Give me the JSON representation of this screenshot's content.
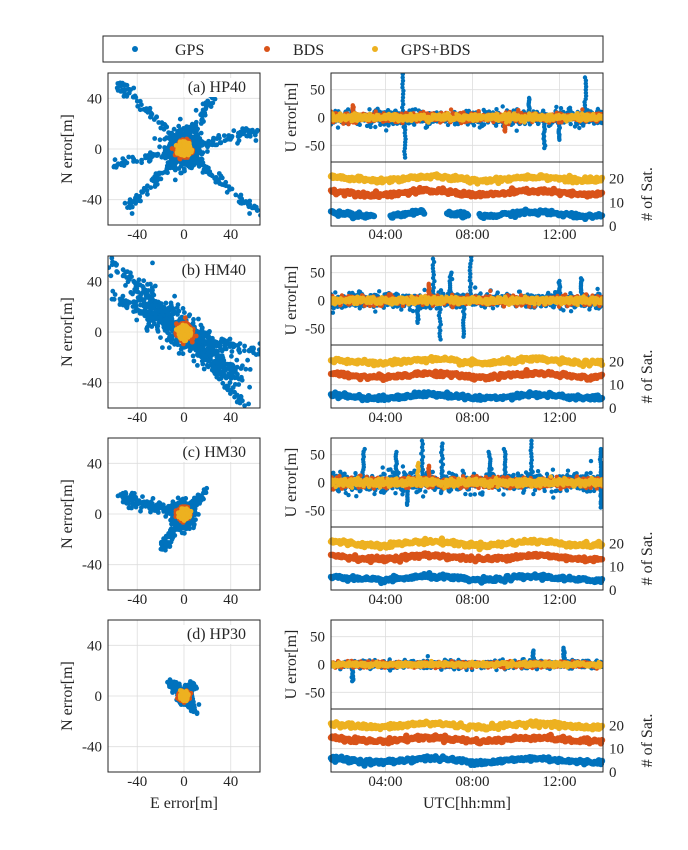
{
  "colors": {
    "GPS": "#0072BD",
    "BDS": "#D95319",
    "GPS+BDS": "#EDB120",
    "axis": "#262626",
    "grid": "#dddddd"
  },
  "legend": {
    "placement": "top",
    "entries": [
      "GPS",
      "BDS",
      "GPS+BDS"
    ]
  },
  "labels": {
    "n_error": "N error[m]",
    "e_error": "E error[m]",
    "u_error": "U error[m]",
    "num_sat": "# of Sat.",
    "utc": "UTC[hh:mm]"
  },
  "chart_data": [
    {
      "type": "scatter",
      "panel": "a",
      "title": "(a) HP40",
      "xlabel": "",
      "ylabel": "N error[m]",
      "xlim": [
        -65,
        65
      ],
      "ylim": [
        -60,
        60
      ],
      "xticks": [
        -40,
        0,
        40
      ],
      "yticks": [
        40,
        0,
        -40
      ],
      "pattern": "star",
      "spread": {
        "GPS": 16,
        "BDS": 6,
        "GPS+BDS": 5
      },
      "arms": [
        [
          -56,
          52
        ],
        [
          -50,
          -48
        ],
        [
          62,
          14
        ],
        [
          62,
          -50
        ],
        [
          -58,
          -12
        ],
        [
          30,
          52
        ]
      ]
    },
    {
      "type": "line",
      "panel": "a-u",
      "ylabel": "U error[m]",
      "ylim": [
        -80,
        80
      ],
      "yticks": [
        50,
        0,
        -50
      ],
      "x_range": [
        "01:30",
        "14:00"
      ],
      "series": [
        {
          "name": "GPS",
          "center": 0,
          "spread": 14,
          "spikes": [
            [
              4.8,
              78
            ],
            [
              4.9,
              -72
            ],
            [
              10.6,
              35
            ],
            [
              11.3,
              -55
            ],
            [
              13.2,
              72
            ],
            [
              12.0,
              -40
            ]
          ]
        },
        {
          "name": "BDS",
          "center": 0,
          "spread": 8,
          "spikes": [
            [
              2.5,
              22
            ],
            [
              9.5,
              -25
            ]
          ]
        },
        {
          "name": "GPS+BDS",
          "center": 0,
          "spread": 6,
          "spikes": []
        }
      ]
    },
    {
      "type": "line",
      "panel": "a-sat",
      "ylabel": "# of Sat.",
      "ylim": [
        0,
        27
      ],
      "yticks": [
        0,
        10,
        20
      ],
      "xticks": [
        "04:00",
        "08:00",
        "12:00"
      ],
      "x_range": [
        "01:30",
        "14:00"
      ],
      "series": [
        {
          "name": "GPS",
          "level": 5,
          "gaps": [
            [
              3.5,
              4.2
            ],
            [
              5.8,
              6.8
            ],
            [
              7.8,
              8.3
            ]
          ]
        },
        {
          "name": "BDS",
          "level": 14
        },
        {
          "name": "GPS+BDS",
          "level": 20
        }
      ]
    },
    {
      "type": "scatter",
      "panel": "b",
      "title": "(b) HM40",
      "xlabel": "",
      "ylabel": "N error[m]",
      "xlim": [
        -65,
        65
      ],
      "ylim": [
        -60,
        60
      ],
      "xticks": [
        -40,
        0,
        40
      ],
      "yticks": [
        40,
        0,
        -40
      ],
      "pattern": "diagonal",
      "spread": {
        "GPS": 22,
        "BDS": 7,
        "GPS+BDS": 5
      },
      "arms": [
        [
          -62,
          56
        ],
        [
          -62,
          28
        ],
        [
          64,
          -16
        ],
        [
          50,
          -56
        ],
        [
          44,
          -34
        ]
      ]
    },
    {
      "type": "line",
      "panel": "b-u",
      "ylabel": "U error[m]",
      "ylim": [
        -80,
        80
      ],
      "yticks": [
        50,
        0,
        -50
      ],
      "x_range": [
        "01:30",
        "14:00"
      ],
      "series": [
        {
          "name": "GPS",
          "center": 0,
          "spread": 14,
          "spikes": [
            [
              6.2,
              75
            ],
            [
              6.5,
              -70
            ],
            [
              7.0,
              50
            ],
            [
              7.6,
              -65
            ],
            [
              7.9,
              78
            ],
            [
              5.5,
              -40
            ],
            [
              12.0,
              35
            ],
            [
              13.0,
              40
            ]
          ]
        },
        {
          "name": "BDS",
          "center": 0,
          "spread": 8,
          "spikes": [
            [
              6.0,
              30
            ]
          ]
        },
        {
          "name": "GPS+BDS",
          "center": 0,
          "spread": 6,
          "spikes": []
        }
      ]
    },
    {
      "type": "line",
      "panel": "b-sat",
      "ylabel": "# of Sat.",
      "ylim": [
        0,
        27
      ],
      "yticks": [
        0,
        10,
        20
      ],
      "xticks": [
        "04:00",
        "08:00",
        "12:00"
      ],
      "x_range": [
        "01:30",
        "14:00"
      ],
      "series": [
        {
          "name": "GPS",
          "level": 5,
          "gaps": []
        },
        {
          "name": "BDS",
          "level": 14
        },
        {
          "name": "GPS+BDS",
          "level": 20
        }
      ]
    },
    {
      "type": "scatter",
      "panel": "c",
      "title": "(c) HM30",
      "xlabel": "",
      "ylabel": "N error[m]",
      "xlim": [
        -65,
        65
      ],
      "ylim": [
        -60,
        60
      ],
      "xticks": [
        -40,
        0,
        40
      ],
      "yticks": [
        40,
        0,
        -40
      ],
      "pattern": "blob",
      "spread": {
        "GPS": 10,
        "BDS": 5,
        "GPS+BDS": 4
      },
      "arms": [
        [
          -55,
          15
        ],
        [
          -50,
          10
        ],
        [
          18,
          18
        ],
        [
          -18,
          -28
        ]
      ]
    },
    {
      "type": "line",
      "panel": "c-u",
      "ylabel": "U error[m]",
      "ylim": [
        -80,
        80
      ],
      "yticks": [
        50,
        0,
        -50
      ],
      "x_range": [
        "01:30",
        "14:00"
      ],
      "series": [
        {
          "name": "GPS",
          "center": 0,
          "spread": 18,
          "spikes": [
            [
              3.0,
              60
            ],
            [
              4.5,
              55
            ],
            [
              5.7,
              75
            ],
            [
              6.6,
              70
            ],
            [
              8.8,
              55
            ],
            [
              9.5,
              60
            ],
            [
              10.7,
              75
            ],
            [
              13.9,
              60
            ],
            [
              13.9,
              -45
            ],
            [
              5.0,
              -40
            ]
          ]
        },
        {
          "name": "BDS",
          "center": 0,
          "spread": 9,
          "spikes": [
            [
              6.0,
              30
            ]
          ]
        },
        {
          "name": "GPS+BDS",
          "center": 0,
          "spread": 7,
          "spikes": [
            [
              5.5,
              35
            ]
          ]
        }
      ]
    },
    {
      "type": "line",
      "panel": "c-sat",
      "ylabel": "# of Sat.",
      "ylim": [
        0,
        27
      ],
      "yticks": [
        0,
        10,
        20
      ],
      "xticks": [
        "04:00",
        "08:00",
        "12:00"
      ],
      "x_range": [
        "01:30",
        "14:00"
      ],
      "series": [
        {
          "name": "GPS",
          "level": 5,
          "gaps": []
        },
        {
          "name": "BDS",
          "level": 14
        },
        {
          "name": "GPS+BDS",
          "level": 20
        }
      ]
    },
    {
      "type": "scatter",
      "panel": "d",
      "title": "(d) HP30",
      "xlabel": "E error[m]",
      "ylabel": "N error[m]",
      "xlim": [
        -65,
        65
      ],
      "ylim": [
        -60,
        60
      ],
      "xticks": [
        -40,
        0,
        40
      ],
      "yticks": [
        40,
        0,
        -40
      ],
      "pattern": "blob",
      "spread": {
        "GPS": 5,
        "BDS": 4,
        "GPS+BDS": 3
      },
      "arms": [
        [
          -10,
          10
        ],
        [
          10,
          -12
        ],
        [
          8,
          8
        ]
      ]
    },
    {
      "type": "line",
      "panel": "d-u",
      "ylabel": "U error[m]",
      "ylim": [
        -80,
        80
      ],
      "yticks": [
        50,
        0,
        -50
      ],
      "x_range": [
        "01:30",
        "14:00"
      ],
      "series": [
        {
          "name": "GPS",
          "center": 0,
          "spread": 7,
          "spikes": [
            [
              2.5,
              -30
            ],
            [
              10.8,
              25
            ],
            [
              12.2,
              30
            ]
          ]
        },
        {
          "name": "BDS",
          "center": 0,
          "spread": 5,
          "spikes": []
        },
        {
          "name": "GPS+BDS",
          "center": 0,
          "spread": 4,
          "spikes": []
        }
      ]
    },
    {
      "type": "line",
      "panel": "d-sat",
      "ylabel": "# of Sat.",
      "xlabel": "UTC[hh:mm]",
      "ylim": [
        0,
        27
      ],
      "yticks": [
        0,
        10,
        20
      ],
      "xticks": [
        "04:00",
        "08:00",
        "12:00"
      ],
      "x_range": [
        "01:30",
        "14:00"
      ],
      "series": [
        {
          "name": "GPS",
          "level": 5,
          "gaps": []
        },
        {
          "name": "BDS",
          "level": 14
        },
        {
          "name": "GPS+BDS",
          "level": 20
        }
      ]
    }
  ]
}
